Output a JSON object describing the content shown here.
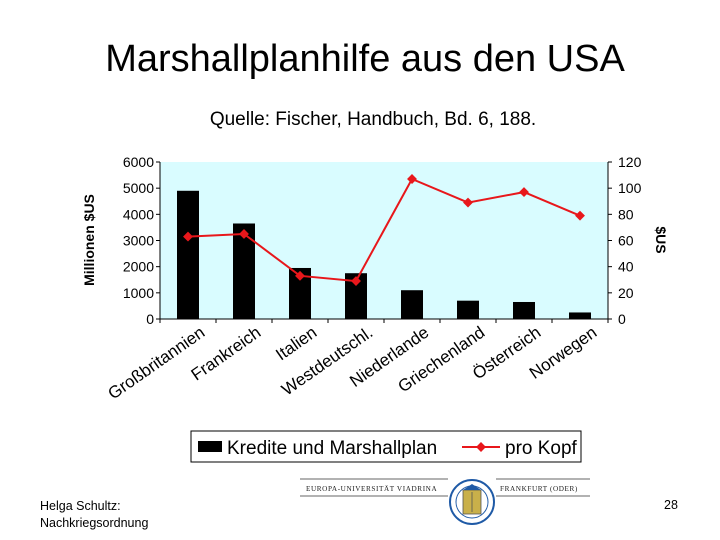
{
  "slide": {
    "title": "Marshallplanhilfe aus den USA",
    "footer_author_line1": "Helga Schultz:",
    "footer_author_line2": "Nachkriegsordnung",
    "page_number": "28",
    "logo_text_left": "EUROPA-UNIVERSITÄT VIADRINA",
    "logo_text_right": "FRANKFURT (ODER)"
  },
  "chart_data": {
    "type": "bar",
    "title": "Quelle:  Fischer, Handbuch, Bd. 6, 188.",
    "categories": [
      "Großbritannien",
      "Frankreich",
      "Italien",
      "Westdeutschl.",
      "Niederlande",
      "Griechenland",
      "Österreich",
      "Norwegen"
    ],
    "series": [
      {
        "name": "Kredite und Marshallplan",
        "type": "bar",
        "axis": "left",
        "color": "#000000",
        "values": [
          4900,
          3650,
          1950,
          1750,
          1100,
          700,
          650,
          250
        ]
      },
      {
        "name": "pro Kopf",
        "type": "line",
        "axis": "right",
        "color": "#e8171b",
        "values": [
          63,
          65,
          33,
          29,
          107,
          89,
          97,
          79
        ]
      }
    ],
    "ylabel": "Millionen $US",
    "ylabel_right": "$US",
    "ylim": [
      0,
      6000
    ],
    "ylim_right": [
      0,
      120
    ],
    "yticks": [
      0,
      1000,
      2000,
      3000,
      4000,
      5000,
      6000
    ],
    "yticks_right": [
      0,
      20,
      40,
      60,
      80,
      100,
      120
    ],
    "plot_background": "#d9fcff",
    "grid": false,
    "legend_position": "bottom"
  }
}
